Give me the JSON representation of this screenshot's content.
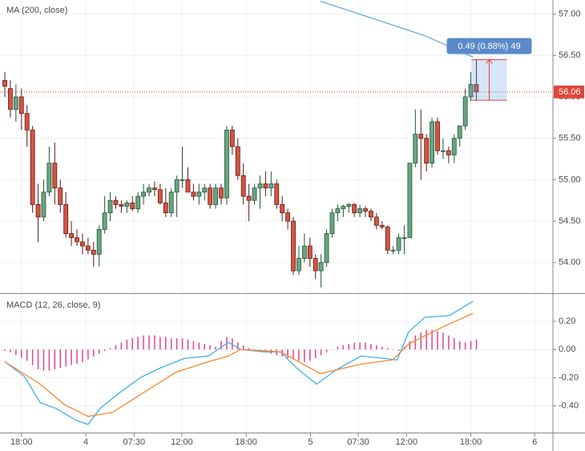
{
  "chart_data": [
    {
      "type": "candlestick",
      "title": "MA (200, close)",
      "xlim": [
        -0.87,
        98.8
      ],
      "ylim": [
        53.63,
        57.17
      ],
      "yticks": [
        {
          "value": 54,
          "label": "54.00"
        },
        {
          "value": 54.5,
          "label": "54.50"
        },
        {
          "value": 55,
          "label": "55.00"
        },
        {
          "value": 55.5,
          "label": "55.50"
        },
        {
          "value": 56,
          "label": "56.00"
        },
        {
          "value": 56.5,
          "label": "56.50"
        },
        {
          "value": 57,
          "label": "57.00"
        }
      ],
      "up_color": "#6ba583",
      "down_color": "#d75442",
      "candles": [
        [
          56.2,
          56.3,
          56.0,
          56.13
        ],
        [
          56.1,
          56.2,
          55.75,
          55.85
        ],
        [
          55.85,
          56.15,
          55.7,
          56.0
        ],
        [
          56.0,
          56.1,
          55.6,
          55.8
        ],
        [
          55.8,
          55.9,
          55.4,
          55.6
        ],
        [
          55.6,
          55.65,
          54.6,
          54.7
        ],
        [
          54.7,
          54.95,
          54.25,
          54.55
        ],
        [
          54.55,
          55.0,
          54.5,
          54.85
        ],
        [
          54.85,
          55.4,
          54.8,
          55.2
        ],
        [
          55.2,
          55.45,
          54.7,
          54.9
        ],
        [
          54.9,
          55.0,
          54.6,
          54.7
        ],
        [
          54.7,
          54.85,
          54.3,
          54.35
        ],
        [
          54.35,
          54.5,
          54.2,
          54.3
        ],
        [
          54.3,
          54.4,
          54.2,
          54.25
        ],
        [
          54.25,
          54.35,
          54.1,
          54.2
        ],
        [
          54.2,
          54.3,
          54.1,
          54.15
        ],
        [
          54.15,
          54.25,
          53.95,
          54.1
        ],
        [
          54.1,
          54.45,
          53.95,
          54.4
        ],
        [
          54.4,
          54.8,
          54.35,
          54.6
        ],
        [
          54.6,
          54.85,
          54.5,
          54.75
        ],
        [
          54.75,
          54.8,
          54.65,
          54.7
        ],
        [
          54.7,
          54.75,
          54.6,
          54.68
        ],
        [
          54.68,
          54.75,
          54.6,
          54.72
        ],
        [
          54.72,
          54.8,
          54.62,
          54.65
        ],
        [
          54.65,
          54.85,
          54.6,
          54.8
        ],
        [
          54.8,
          54.95,
          54.7,
          54.85
        ],
        [
          54.85,
          54.95,
          54.8,
          54.9
        ],
        [
          54.9,
          54.98,
          54.8,
          54.88
        ],
        [
          54.88,
          54.95,
          54.7,
          54.72
        ],
        [
          54.72,
          54.9,
          54.55,
          54.6
        ],
        [
          54.6,
          54.9,
          54.55,
          54.85
        ],
        [
          54.85,
          55.05,
          54.55,
          55.0
        ],
        [
          55.0,
          55.4,
          54.9,
          55.0
        ],
        [
          55.0,
          55.15,
          54.85,
          54.85
        ],
        [
          54.85,
          54.95,
          54.75,
          54.8
        ],
        [
          54.8,
          54.95,
          54.7,
          54.85
        ],
        [
          54.85,
          54.95,
          54.75,
          54.9
        ],
        [
          54.9,
          54.95,
          54.65,
          54.7
        ],
        [
          54.7,
          54.95,
          54.65,
          54.9
        ],
        [
          54.9,
          54.95,
          54.7,
          54.78
        ],
        [
          54.78,
          55.65,
          54.7,
          55.6
        ],
        [
          55.6,
          55.65,
          55.3,
          55.4
        ],
        [
          55.4,
          55.5,
          55.0,
          55.05
        ],
        [
          55.05,
          55.2,
          54.7,
          54.8
        ],
        [
          54.8,
          54.95,
          54.5,
          54.75
        ],
        [
          54.75,
          54.95,
          54.7,
          54.9
        ],
        [
          54.9,
          55.05,
          54.65,
          54.95
        ],
        [
          54.95,
          55.1,
          54.8,
          54.9
        ],
        [
          54.9,
          55.1,
          54.8,
          54.95
        ],
        [
          54.95,
          55.0,
          54.65,
          54.7
        ],
        [
          54.7,
          54.8,
          54.5,
          54.6
        ],
        [
          54.6,
          54.65,
          54.4,
          54.5
        ],
        [
          54.5,
          54.55,
          53.85,
          53.9
        ],
        [
          53.9,
          54.2,
          53.85,
          54.05
        ],
        [
          54.05,
          54.35,
          54.0,
          54.2
        ],
        [
          54.2,
          54.3,
          53.95,
          54.05
        ],
        [
          54.05,
          54.1,
          53.8,
          53.9
        ],
        [
          53.9,
          54.1,
          53.7,
          54.0
        ],
        [
          54.0,
          54.4,
          53.95,
          54.35
        ],
        [
          54.35,
          54.65,
          54.3,
          54.6
        ],
        [
          54.6,
          54.7,
          54.5,
          54.65
        ],
        [
          54.65,
          54.7,
          54.55,
          54.68
        ],
        [
          54.68,
          54.72,
          54.6,
          54.7
        ],
        [
          54.7,
          54.72,
          54.55,
          54.6
        ],
        [
          54.6,
          54.7,
          54.55,
          54.65
        ],
        [
          54.65,
          54.68,
          54.55,
          54.62
        ],
        [
          54.62,
          54.65,
          54.5,
          54.55
        ],
        [
          54.55,
          54.6,
          54.4,
          54.45
        ],
        [
          54.45,
          54.5,
          54.4,
          54.43
        ],
        [
          54.43,
          54.45,
          54.1,
          54.15
        ],
        [
          54.15,
          54.2,
          54.1,
          54.15
        ],
        [
          54.15,
          54.35,
          54.1,
          54.3
        ],
        [
          54.3,
          54.45,
          54.1,
          54.3
        ],
        [
          54.3,
          55.2,
          54.3,
          55.2
        ],
        [
          55.2,
          55.85,
          55.15,
          55.55
        ],
        [
          55.55,
          55.85,
          55.0,
          55.5
        ],
        [
          55.5,
          55.55,
          55.1,
          55.2
        ],
        [
          55.2,
          55.75,
          55.15,
          55.7
        ],
        [
          55.7,
          55.75,
          55.3,
          55.35
        ],
        [
          55.35,
          55.5,
          55.25,
          55.35
        ],
        [
          55.35,
          55.4,
          55.2,
          55.3
        ],
        [
          55.3,
          55.55,
          55.2,
          55.5
        ],
        [
          55.5,
          55.65,
          55.4,
          55.65
        ],
        [
          55.65,
          56.1,
          55.6,
          56.0
        ],
        [
          56.0,
          56.3,
          55.95,
          56.15
        ],
        [
          56.15,
          56.45,
          55.95,
          56.06
        ]
      ],
      "ma": {
        "color": "#5ba3d6",
        "x": [
          56.9,
          67.1,
          75.7,
          84.4
        ],
        "values": [
          57.155,
          56.93,
          56.74,
          56.48
        ]
      },
      "last_price": 56.06,
      "last_price_color": "#e0453a",
      "measure": {
        "from": 55.96,
        "to": 56.45,
        "label": "0.49 (0.88%) 49"
      }
    },
    {
      "type": "macd",
      "title": "MACD (12, 26, close, 9)",
      "xlim": [
        -0.87,
        98.8
      ],
      "ylim": [
        -0.589,
        0.394
      ],
      "yticks": [
        {
          "value": -0.4,
          "label": "-0.40"
        },
        {
          "value": -0.2,
          "label": "-0.20"
        },
        {
          "value": 0,
          "label": "0.00"
        },
        {
          "value": 0.2,
          "label": "0.20"
        }
      ],
      "xticks": [
        {
          "value": 3.0,
          "label": "18:00"
        },
        {
          "value": 14.6,
          "label": "4"
        },
        {
          "value": 23.3,
          "label": "07:30"
        },
        {
          "value": 31.9,
          "label": "12:00"
        },
        {
          "value": 43.5,
          "label": "18:00"
        },
        {
          "value": 55.1,
          "label": "5"
        },
        {
          "value": 63.7,
          "label": "07:30"
        },
        {
          "value": 72.4,
          "label": "12:00"
        },
        {
          "value": 84.0,
          "label": "18:00"
        },
        {
          "value": 95.5,
          "label": "6"
        }
      ],
      "histogram": {
        "color": "#e0458a",
        "values": [
          -0.01,
          -0.02,
          -0.04,
          -0.06,
          -0.08,
          -0.11,
          -0.14,
          -0.15,
          -0.15,
          -0.14,
          -0.13,
          -0.12,
          -0.11,
          -0.1,
          -0.09,
          -0.07,
          -0.05,
          -0.03,
          -0.01,
          0.01,
          0.03,
          0.05,
          0.07,
          0.08,
          0.09,
          0.1,
          0.1,
          0.1,
          0.09,
          0.09,
          0.08,
          0.08,
          0.08,
          0.07,
          0.06,
          0.05,
          0.04,
          0.03,
          0.02,
          0.06,
          0.09,
          0.08,
          0.05,
          0.03,
          0.01,
          0.0,
          -0.01,
          -0.02,
          -0.03,
          -0.04,
          -0.05,
          -0.06,
          -0.07,
          -0.08,
          -0.09,
          -0.08,
          -0.06,
          -0.04,
          -0.02,
          0.0,
          0.02,
          0.03,
          0.04,
          0.05,
          0.05,
          0.05,
          0.04,
          0.03,
          0.02,
          0.01,
          0.0,
          -0.01,
          0.02,
          0.06,
          0.1,
          0.12,
          0.14,
          0.14,
          0.13,
          0.12,
          0.1,
          0.08,
          0.06,
          0.05,
          0.06,
          0.07
        ]
      },
      "series": [
        {
          "color": "#40b0ec",
          "x": [
            0,
            3.5,
            6.4,
            9.2,
            12.9,
            15.0,
            17.2,
            20.8,
            24.4,
            28.0,
            32.4,
            36.7,
            40.3,
            42.5,
            46.8,
            49.7,
            52.6,
            56.2,
            59.8,
            64.2,
            68.5,
            70.7,
            72.8,
            75.7,
            80.1,
            84.4
          ],
          "values": [
            -0.086,
            -0.19,
            -0.377,
            -0.417,
            -0.503,
            -0.531,
            -0.417,
            -0.303,
            -0.2,
            -0.131,
            -0.063,
            -0.046,
            0.051,
            0,
            -0.017,
            -0.017,
            -0.131,
            -0.246,
            -0.143,
            -0.046,
            -0.063,
            -0.074,
            0.126,
            0.229,
            0.24,
            0.343
          ]
        },
        {
          "color": "#f7882f",
          "x": [
            0,
            6.4,
            10.7,
            15.0,
            19.4,
            25.1,
            30.9,
            36.7,
            40.3,
            42.5,
            49.7,
            56.9,
            64.2,
            69.9,
            72.8,
            78.6,
            84.4
          ],
          "values": [
            -0.086,
            -0.246,
            -0.389,
            -0.474,
            -0.446,
            -0.303,
            -0.16,
            -0.086,
            -0.046,
            0,
            -0.017,
            -0.171,
            -0.103,
            -0.074,
            0.04,
            0.154,
            0.257
          ]
        }
      ]
    }
  ]
}
